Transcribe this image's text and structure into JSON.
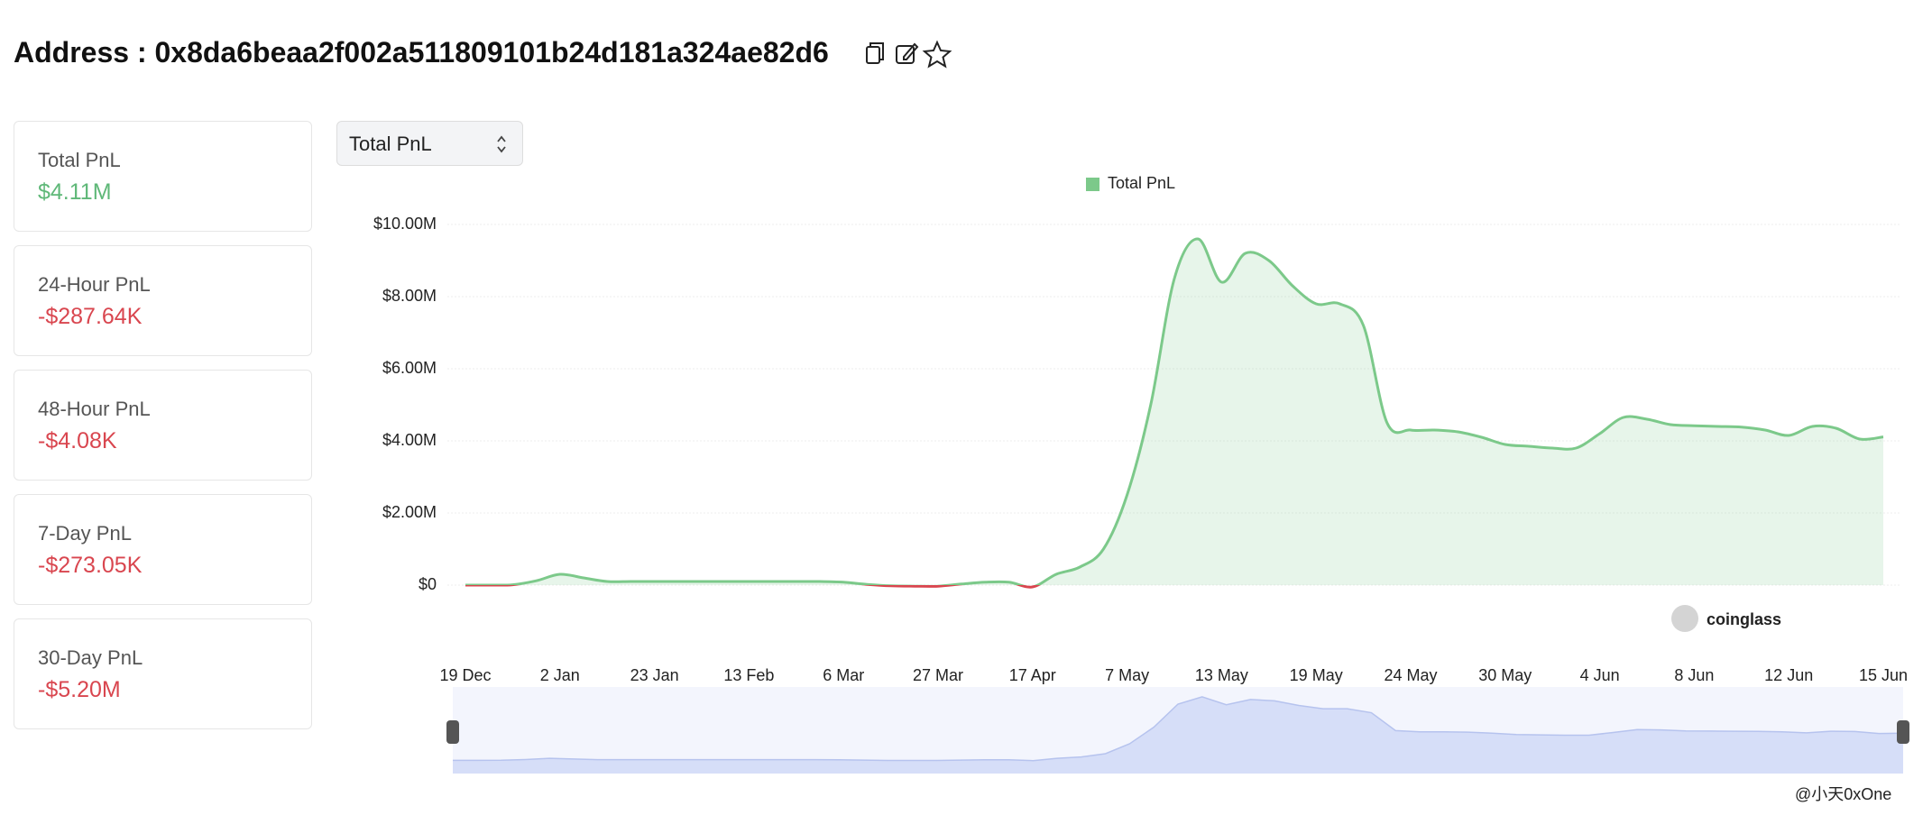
{
  "header": {
    "title": "Address : 0x8da6beaa2f002a511809101b24d181a324ae82d6"
  },
  "cards": [
    {
      "label": "Total PnL",
      "value": "$4.11M",
      "color": "#5fb878"
    },
    {
      "label": "24-Hour PnL",
      "value": "-$287.64K",
      "color": "#d9464f"
    },
    {
      "label": "48-Hour PnL",
      "value": "-$4.08K",
      "color": "#d9464f"
    },
    {
      "label": "7-Day PnL",
      "value": "-$273.05K",
      "color": "#d9464f"
    },
    {
      "label": "30-Day PnL",
      "value": "-$5.20M",
      "color": "#d9464f"
    }
  ],
  "selector": {
    "label": "Total PnL"
  },
  "chart_data": {
    "type": "area",
    "categories": [
      "19 Dec",
      null,
      null,
      null,
      "2 Jan",
      null,
      null,
      null,
      "23 Jan",
      null,
      null,
      null,
      "13 Feb",
      null,
      null,
      null,
      "6 Mar",
      null,
      null,
      null,
      "27 Mar",
      null,
      null,
      null,
      "17 Apr",
      null,
      null,
      null,
      "7 May",
      null,
      null,
      null,
      "13 May",
      null,
      null,
      null,
      "19 May",
      null,
      null,
      null,
      "24 May",
      null,
      null,
      null,
      "30 May",
      null,
      null,
      null,
      "4 Jun",
      null,
      null,
      null,
      "8 Jun",
      null,
      null,
      null,
      "12 Jun",
      null,
      null,
      null,
      "15 Jun"
    ],
    "series": [
      {
        "name": "Total PnL",
        "color": "#7cc98a",
        "negative_color": "#d9464f",
        "values": [
          0,
          0,
          10000,
          120000,
          300000,
          200000,
          100000,
          100000,
          100000,
          100000,
          100000,
          100000,
          100000,
          100000,
          100000,
          100000,
          80000,
          20000,
          -20000,
          -30000,
          -30000,
          30000,
          80000,
          80000,
          -50000,
          300000,
          500000,
          1000000,
          2500000,
          5000000,
          8500000,
          9600000,
          8400000,
          9200000,
          9000000,
          8300000,
          7800000,
          7800000,
          7200000,
          4500000,
          4300000,
          4300000,
          4250000,
          4100000,
          3900000,
          3850000,
          3800000,
          3800000,
          4200000,
          4650000,
          4600000,
          4450000,
          4420000,
          4400000,
          4380000,
          4300000,
          4150000,
          4400000,
          4350000,
          4050000,
          4110000
        ]
      }
    ],
    "ylim": [
      -2000000,
      10000000
    ],
    "yticks": [
      {
        "value": 0,
        "label": "$0"
      },
      {
        "value": 2000000,
        "label": "$2.00M"
      },
      {
        "value": 4000000,
        "label": "$4.00M"
      },
      {
        "value": 6000000,
        "label": "$6.00M"
      },
      {
        "value": 8000000,
        "label": "$8.00M"
      },
      {
        "value": 10000000,
        "label": "$10.00M"
      }
    ],
    "grid": true,
    "legend": "top"
  },
  "watermarks": {
    "brand": "coinglass",
    "credit": "@小天0xOne"
  }
}
